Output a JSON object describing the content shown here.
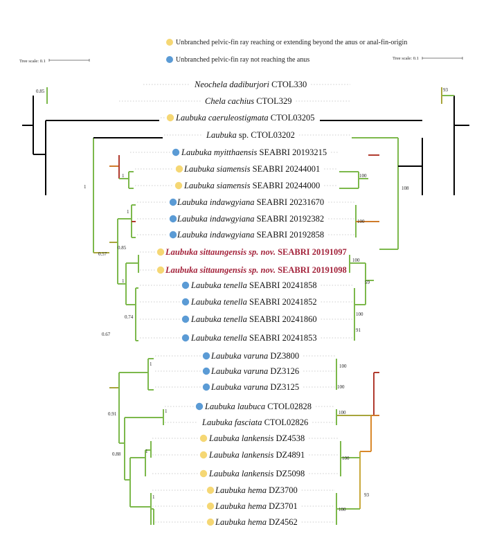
{
  "colors": {
    "yellow_dot": "#f5d774",
    "blue_dot": "#5b9bd5",
    "green": "#7cb84b",
    "olive": "#a7a43a",
    "orange": "#cf7a2a",
    "red": "#b03a2e",
    "black": "#000000",
    "highlight_text": "#a3223a"
  },
  "legend": {
    "yellow": "Unbranched pelvic-fin ray reaching or extending beyond the anus  or anal-fin-origin",
    "blue": "Unbranched pelvic-fin ray not reaching the anus"
  },
  "tree_scale": {
    "left_label": "Tree scale: 0.1",
    "right_label": "Tree scale: 0.1"
  },
  "taxa": [
    {
      "genus": "Neochela dadiburjori",
      "code": "CTOL330",
      "dot": "none",
      "red": false
    },
    {
      "genus": "Chela cachius",
      "code": "CTOL329",
      "dot": "none",
      "red": false
    },
    {
      "genus": "Laubuka caeruleostigmata",
      "code": "CTOL03205",
      "dot": "yellow",
      "red": false
    },
    {
      "genus": "Laubuka",
      "suffix": " sp.",
      "code": "CTOL03202",
      "dot": "none",
      "red": false
    },
    {
      "genus": "Laubuka myitthaensis",
      "code": "SEABRI 20193215",
      "dot": "blue",
      "red": false
    },
    {
      "genus": "Laubuka siamensis",
      "code": "SEABRI 20244001",
      "dot": "yellow",
      "red": false
    },
    {
      "genus": "Laubuka siamensis",
      "code": "SEABRI 20244000",
      "dot": "yellow",
      "red": false
    },
    {
      "genus": "Laubuka indawgyiana",
      "code": "SEABRI 20231670",
      "dot": "blue",
      "red": false
    },
    {
      "genus": "Laubuka indawgyiana",
      "code": "SEABRI 20192382",
      "dot": "blue",
      "red": false
    },
    {
      "genus": "Laubuka indawgyiana",
      "code": "SEABRI 20192858",
      "dot": "blue",
      "red": false
    },
    {
      "genus": "Laubuka sittaungensis sp. nov.",
      "code": "SEABRI 20191097",
      "dot": "yellow",
      "red": true
    },
    {
      "genus": "Laubuka sittaungensis sp. nov.",
      "code": "SEABRI 20191098",
      "dot": "yellow",
      "red": true
    },
    {
      "genus": "Laubuka tenella",
      "code": "SEABRI 20241858",
      "dot": "blue",
      "red": false
    },
    {
      "genus": "Laubuka tenella",
      "code": "SEABRI 20241852",
      "dot": "blue",
      "red": false
    },
    {
      "genus": "Laubuka tenella",
      "code": "SEABRI 20241860",
      "dot": "blue",
      "red": false
    },
    {
      "genus": "Laubuka tenella",
      "code": "SEABRI 20241853",
      "dot": "blue",
      "red": false
    },
    {
      "genus": "Laubuka varuna",
      "code": "DZ3800",
      "dot": "blue",
      "red": false
    },
    {
      "genus": "Laubuka varuna",
      "code": "DZ3126",
      "dot": "blue",
      "red": false
    },
    {
      "genus": "Laubuka varuna",
      "code": "DZ3125",
      "dot": "blue",
      "red": false
    },
    {
      "genus": "Laubuka laubuca",
      "code": "CTOL02828",
      "dot": "blue",
      "red": false
    },
    {
      "genus": "Laubuka fasciata",
      "code": "CTOL02826",
      "dot": "none",
      "red": false
    },
    {
      "genus": "Laubuka lankensis",
      "code": "DZ4538",
      "dot": "yellow",
      "red": false
    },
    {
      "genus": "Laubuka lankensis",
      "code": "DZ4891",
      "dot": "yellow",
      "red": false
    },
    {
      "genus": "Laubuka lankensis",
      "code": "DZ5098",
      "dot": "yellow",
      "red": false
    },
    {
      "genus": "Laubuka hema",
      "code": "DZ3700",
      "dot": "yellow",
      "red": false
    },
    {
      "genus": "Laubuka hema",
      "code": "DZ3701",
      "dot": "yellow",
      "red": false
    },
    {
      "genus": "Laubuka hema",
      "code": "DZ4562",
      "dot": "yellow",
      "red": false
    }
  ],
  "support_values": {
    "left": [
      "0.85",
      "1",
      "1",
      "1",
      "0.85",
      "1",
      "0.57",
      "0.74",
      "0.67",
      "1",
      "1",
      "0.91",
      "1",
      "0.88",
      "1"
    ],
    "right": [
      "93",
      "100",
      "108",
      "100",
      "100",
      "59",
      "100",
      "91",
      "100",
      "100",
      "100",
      "100",
      "93",
      "100"
    ]
  }
}
